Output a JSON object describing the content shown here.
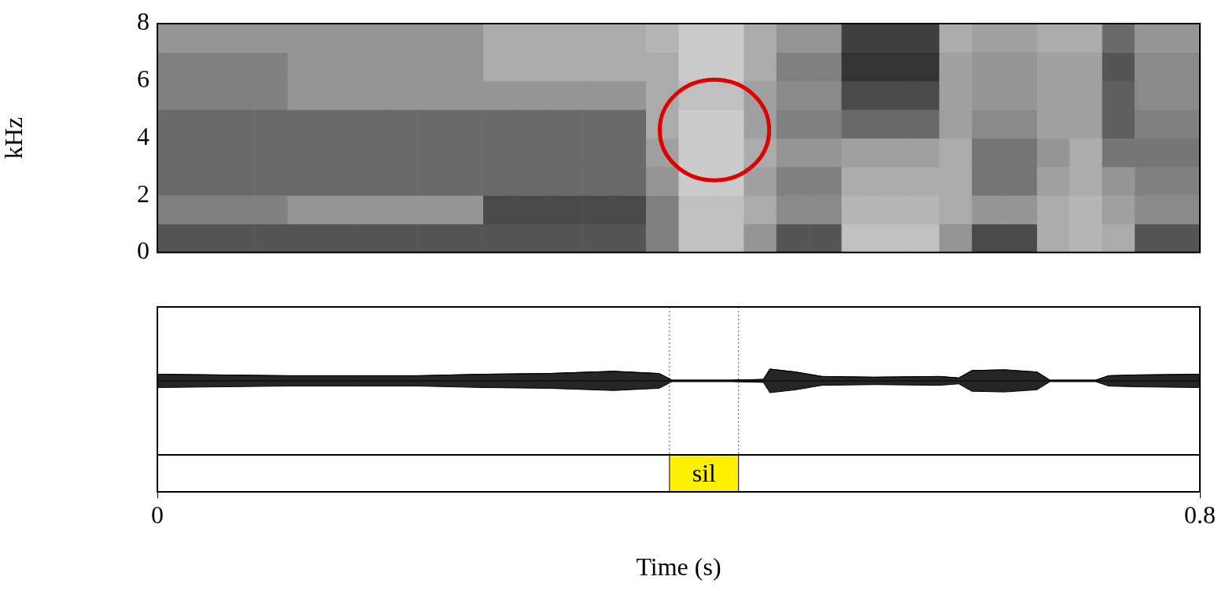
{
  "chart_data": [
    {
      "type": "heatmap",
      "ylabel": "kHz",
      "xlim": [
        0,
        0.8
      ],
      "ylim": [
        0,
        8
      ],
      "yticks": [
        0,
        2,
        4,
        6,
        8
      ],
      "grid": false,
      "tick_labels": "y",
      "time_bins": [
        0,
        0.025,
        0.05,
        0.075,
        0.1,
        0.125,
        0.15,
        0.175,
        0.2,
        0.225,
        0.25,
        0.275,
        0.3,
        0.325,
        0.35,
        0.375,
        0.4,
        0.425,
        0.45,
        0.475,
        0.5,
        0.525,
        0.55,
        0.575,
        0.6,
        0.625,
        0.65,
        0.675,
        0.7,
        0.725,
        0.75,
        0.775,
        0.8
      ],
      "freq_bins": [
        0,
        1,
        2,
        3,
        4,
        5,
        6,
        7,
        8
      ],
      "cells": [
        [
          0.7,
          0.5,
          0.6,
          0.6,
          0.6,
          0.5,
          0.5,
          0.4
        ],
        [
          0.7,
          0.5,
          0.6,
          0.6,
          0.6,
          0.5,
          0.5,
          0.4
        ],
        [
          0.7,
          0.5,
          0.6,
          0.6,
          0.6,
          0.5,
          0.5,
          0.4
        ],
        [
          0.7,
          0.5,
          0.6,
          0.6,
          0.6,
          0.5,
          0.5,
          0.4
        ],
        [
          0.7,
          0.4,
          0.6,
          0.6,
          0.6,
          0.4,
          0.4,
          0.4
        ],
        [
          0.7,
          0.4,
          0.6,
          0.6,
          0.6,
          0.4,
          0.4,
          0.4
        ],
        [
          0.7,
          0.4,
          0.6,
          0.6,
          0.6,
          0.4,
          0.4,
          0.4
        ],
        [
          0.7,
          0.4,
          0.6,
          0.6,
          0.6,
          0.4,
          0.4,
          0.4
        ],
        [
          0.7,
          0.4,
          0.6,
          0.6,
          0.6,
          0.4,
          0.4,
          0.4
        ],
        [
          0.7,
          0.4,
          0.6,
          0.6,
          0.6,
          0.4,
          0.4,
          0.4
        ],
        [
          0.7,
          0.75,
          0.6,
          0.6,
          0.6,
          0.4,
          0.3,
          0.3
        ],
        [
          0.7,
          0.75,
          0.6,
          0.6,
          0.6,
          0.4,
          0.3,
          0.3
        ],
        [
          0.7,
          0.75,
          0.6,
          0.6,
          0.6,
          0.4,
          0.3,
          0.3
        ],
        [
          0.7,
          0.75,
          0.6,
          0.6,
          0.6,
          0.4,
          0.3,
          0.3
        ],
        [
          0.7,
          0.75,
          0.6,
          0.6,
          0.6,
          0.4,
          0.3,
          0.3
        ],
        [
          0.5,
          0.5,
          0.4,
          0.35,
          0.3,
          0.3,
          0.3,
          0.25
        ],
        [
          0.2,
          0.2,
          0.15,
          0.15,
          0.15,
          0.2,
          0.15,
          0.15
        ],
        [
          0.2,
          0.2,
          0.15,
          0.15,
          0.15,
          0.2,
          0.15,
          0.15
        ],
        [
          0.4,
          0.3,
          0.35,
          0.3,
          0.35,
          0.35,
          0.3,
          0.3
        ],
        [
          0.7,
          0.45,
          0.5,
          0.4,
          0.5,
          0.45,
          0.5,
          0.4
        ],
        [
          0.7,
          0.45,
          0.5,
          0.4,
          0.5,
          0.45,
          0.5,
          0.4
        ],
        [
          0.2,
          0.25,
          0.3,
          0.35,
          0.6,
          0.75,
          0.85,
          0.8
        ],
        [
          0.2,
          0.25,
          0.3,
          0.35,
          0.6,
          0.75,
          0.85,
          0.8
        ],
        [
          0.2,
          0.25,
          0.3,
          0.35,
          0.6,
          0.75,
          0.85,
          0.8
        ],
        [
          0.4,
          0.3,
          0.3,
          0.3,
          0.35,
          0.35,
          0.35,
          0.3
        ],
        [
          0.75,
          0.4,
          0.55,
          0.55,
          0.45,
          0.4,
          0.4,
          0.35
        ],
        [
          0.75,
          0.4,
          0.55,
          0.55,
          0.45,
          0.4,
          0.4,
          0.35
        ],
        [
          0.3,
          0.3,
          0.35,
          0.4,
          0.35,
          0.35,
          0.35,
          0.3
        ],
        [
          0.25,
          0.25,
          0.3,
          0.3,
          0.35,
          0.35,
          0.35,
          0.3
        ],
        [
          0.3,
          0.35,
          0.4,
          0.55,
          0.65,
          0.65,
          0.7,
          0.6
        ],
        [
          0.7,
          0.45,
          0.5,
          0.55,
          0.5,
          0.45,
          0.45,
          0.4
        ],
        [
          0.7,
          0.45,
          0.5,
          0.55,
          0.5,
          0.45,
          0.45,
          0.4
        ]
      ],
      "highlight": {
        "time": 0.4275,
        "freq": 4.28,
        "time_radius": 0.042,
        "freq_radius": 1.76,
        "color": "#e00000"
      }
    },
    {
      "type": "line",
      "xlabel": "Time (s)",
      "xlim": [
        0,
        0.8
      ],
      "xticks": [
        0,
        0.8
      ],
      "ylim": [
        -1,
        1
      ],
      "grid": false,
      "tick_labels": "x",
      "color": "#000000",
      "x": [
        0,
        0.05,
        0.1,
        0.15,
        0.2,
        0.25,
        0.3,
        0.35,
        0.385,
        0.395,
        0.44,
        0.465,
        0.47,
        0.49,
        0.51,
        0.55,
        0.6,
        0.615,
        0.625,
        0.65,
        0.675,
        0.685,
        0.72,
        0.73,
        0.75,
        0.8
      ],
      "values": [
        0.09,
        0.08,
        0.07,
        0.07,
        0.07,
        0.09,
        0.1,
        0.13,
        0.1,
        0.01,
        0.01,
        0.02,
        0.16,
        0.12,
        0.06,
        0.05,
        0.06,
        0.04,
        0.14,
        0.15,
        0.12,
        0.01,
        0.01,
        0.07,
        0.08,
        0.09
      ],
      "intervals": [
        {
          "start": 0.393,
          "end": 0.446,
          "label": "sil",
          "color": "#ffef00"
        }
      ]
    }
  ]
}
